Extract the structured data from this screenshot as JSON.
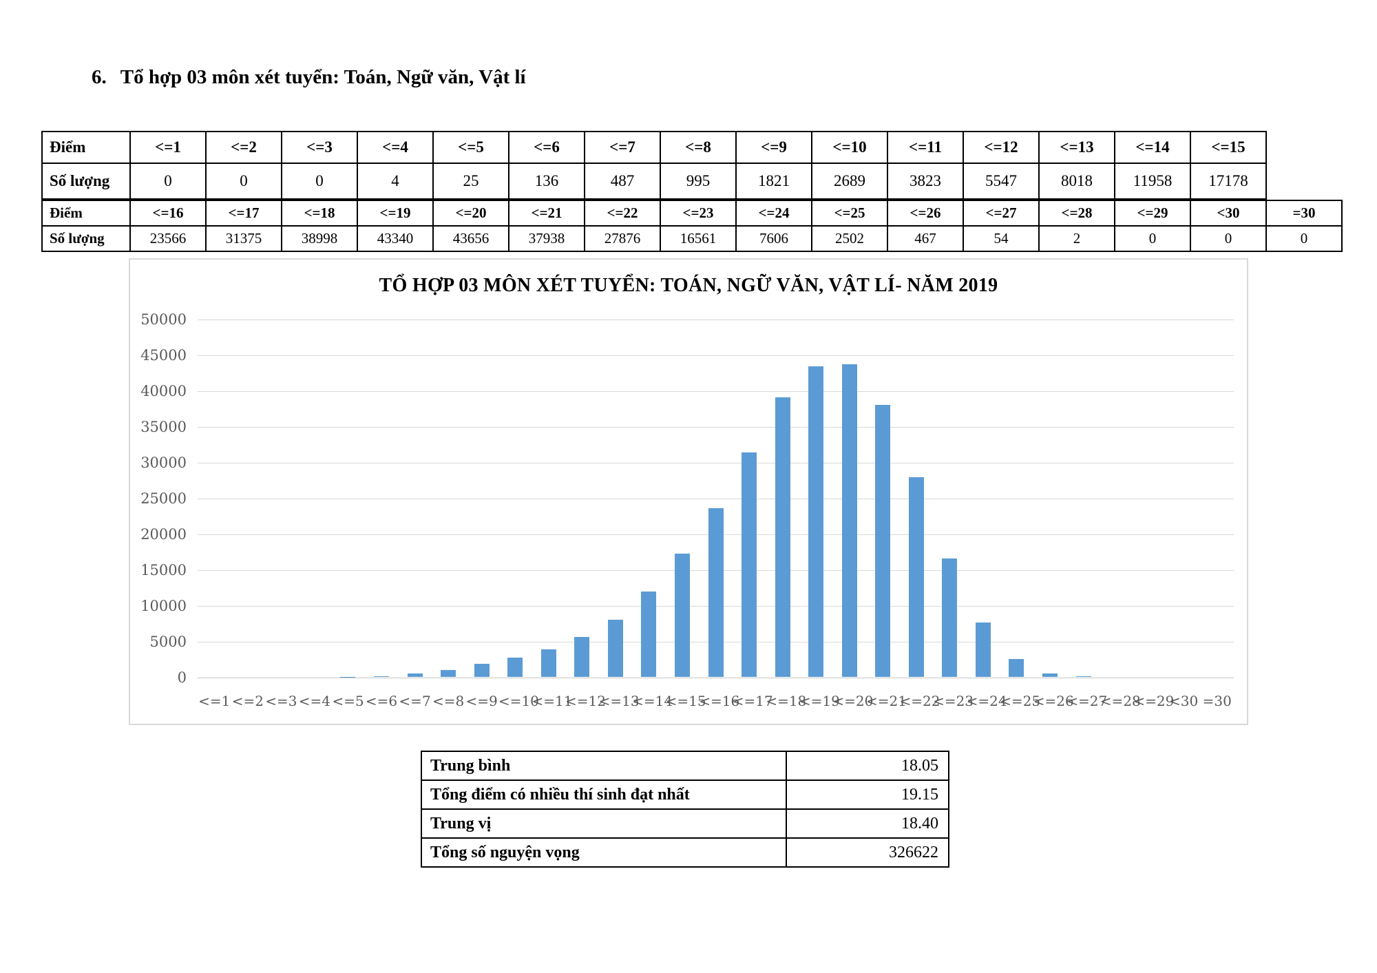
{
  "page": {
    "heading_number": "6.",
    "heading_text": "Tổ hợp 03 môn xét tuyển: Toán, Ngữ văn, Vật lí"
  },
  "score_table": {
    "score_row_label": "Điểm",
    "count_row_label": "Số lượng",
    "band1": {
      "scores": [
        "<=1",
        "<=2",
        "<=3",
        "<=4",
        "<=5",
        "<=6",
        "<=7",
        "<=8",
        "<=9",
        "<=10",
        "<=11",
        "<=12",
        "<=13",
        "<=14",
        "<=15"
      ],
      "counts": [
        0,
        0,
        0,
        4,
        25,
        136,
        487,
        995,
        1821,
        2689,
        3823,
        5547,
        8018,
        11958,
        17178
      ]
    },
    "band2": {
      "scores": [
        "<=16",
        "<=17",
        "<=18",
        "<=19",
        "<=20",
        "<=21",
        "<=22",
        "<=23",
        "<=24",
        "<=25",
        "<=26",
        "<=27",
        "<=28",
        "<=29",
        "<30",
        "=30"
      ],
      "counts": [
        23566,
        31375,
        38998,
        43340,
        43656,
        37938,
        27876,
        16561,
        7606,
        2502,
        467,
        54,
        2,
        0,
        0,
        0
      ]
    }
  },
  "chart_data": {
    "type": "bar",
    "title": "TỔ HỢP 03 MÔN XÉT TUYỂN: TOÁN, NGỮ VĂN, VẬT LÍ- NĂM 2019",
    "categories": [
      "<=1",
      "<=2",
      "<=3",
      "<=4",
      "<=5",
      "<=6",
      "<=7",
      "<=8",
      "<=9",
      "<=10",
      "<=11",
      "<=12",
      "<=13",
      "<=14",
      "<=15",
      "<=16",
      "<=17",
      "<=18",
      "<=19",
      "<=20",
      "<=21",
      "<=22",
      "<=23",
      "<=24",
      "<=25",
      "<=26",
      "<=27",
      "<=28",
      "<=29",
      "<30",
      "=30"
    ],
    "values": [
      0,
      0,
      0,
      4,
      25,
      136,
      487,
      995,
      1821,
      2689,
      3823,
      5547,
      8018,
      11958,
      17178,
      23566,
      31375,
      38998,
      43340,
      43656,
      37938,
      27876,
      16561,
      7606,
      2502,
      467,
      54,
      2,
      0,
      0,
      0
    ],
    "xlabel": "",
    "ylabel": "",
    "ylim": [
      0,
      50000
    ],
    "ytick_step": 5000,
    "grid": true,
    "legend": "none",
    "bar_color": "#5b9bd5",
    "tick_color": "#595959",
    "grid_color": "#d9d9d9"
  },
  "summary_table": {
    "rows": [
      {
        "label": "Trung bình",
        "value": "18.05"
      },
      {
        "label": "Tổng điểm có nhiều thí sinh đạt nhất",
        "value": "19.15"
      },
      {
        "label": "Trung vị",
        "value": "18.40"
      },
      {
        "label": "Tổng số nguyện vọng",
        "value": "326622"
      }
    ]
  }
}
